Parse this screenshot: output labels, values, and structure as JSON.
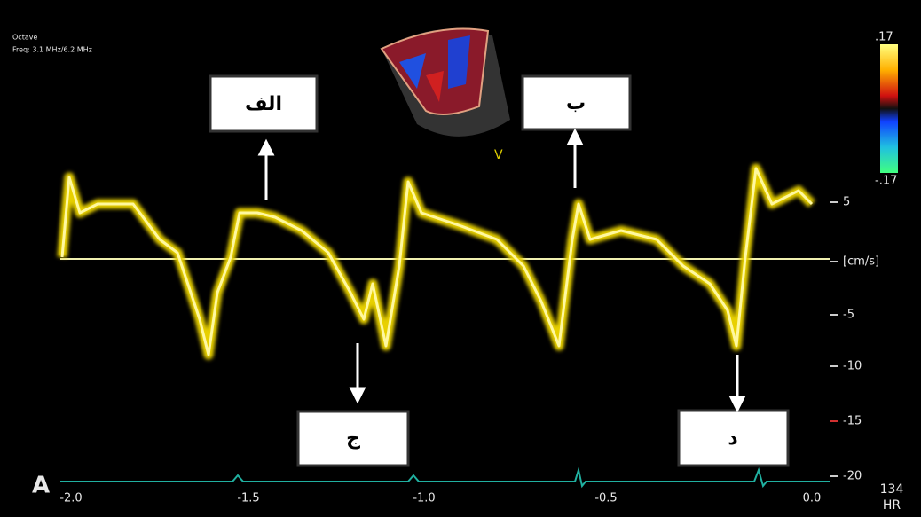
{
  "header": {
    "mode": "Octave",
    "freq": "Freq: 3.1 MHz/6.2 MHz"
  },
  "annotations": [
    "الف",
    "ب",
    "ج",
    "د"
  ],
  "color_scale": {
    "top": ".17",
    "bottom": "-.17"
  },
  "velocity_scale": {
    "ticks": [
      "5",
      "[cm/s]",
      "-5",
      "-10",
      "-15",
      "-20"
    ]
  },
  "time_axis": {
    "ticks": [
      "-2.0",
      "-1.5",
      "-1.0",
      "-0.5",
      "0.0"
    ]
  },
  "hr": {
    "value": "134",
    "label": "HR"
  },
  "panel_label": "A"
}
